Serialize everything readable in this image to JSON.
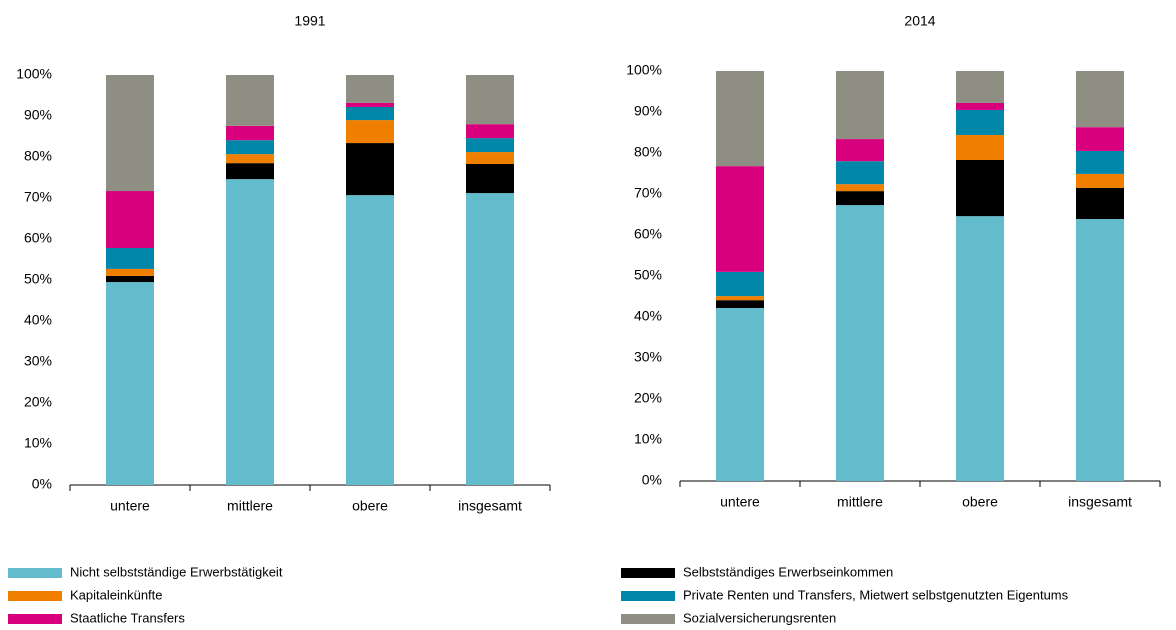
{
  "chart_data": [
    {
      "type": "stacked_bar",
      "title": "1991",
      "categories": [
        "untere",
        "mittlere",
        "obere",
        "insgesamt"
      ],
      "ylim": [
        0,
        100
      ],
      "yticks": [
        {
          "value": 0,
          "label": "0%"
        },
        {
          "value": 10,
          "label": "10%"
        },
        {
          "value": 20,
          "label": "20%"
        },
        {
          "value": 30,
          "label": "30%"
        },
        {
          "value": 40,
          "label": "40%"
        },
        {
          "value": 50,
          "label": "50%"
        },
        {
          "value": 60,
          "label": "60%"
        },
        {
          "value": 70,
          "label": "70%"
        },
        {
          "value": 80,
          "label": "80%"
        },
        {
          "value": 90,
          "label": "90%"
        },
        {
          "value": 100,
          "label": "100%"
        }
      ],
      "series": [
        {
          "name": "Nicht selbstständige Erwerbstätigkeit",
          "color": "#62bccc",
          "values": [
            49.5,
            74.6,
            70.7,
            71.2
          ]
        },
        {
          "name": "Selbstständiges Erwerbseinkommen",
          "color": "#000000",
          "values": [
            1.5,
            3.9,
            12.7,
            7.1
          ]
        },
        {
          "name": "Kapitaleinkünfte",
          "color": "#f07f00",
          "values": [
            1.7,
            2.2,
            5.6,
            2.9
          ]
        },
        {
          "name": "Private Renten und Transfers, Mietwert selbstgenutzten Eigentums",
          "color": "#0086a8",
          "values": [
            5.1,
            3.4,
            3.2,
            3.4
          ]
        },
        {
          "name": "Staatliche Transfers",
          "color": "#d9007e",
          "values": [
            13.9,
            3.5,
            1.0,
            3.4
          ]
        },
        {
          "name": "Sozialversicherungsrenten",
          "color": "#8f8e82",
          "values": [
            28.3,
            12.4,
            6.8,
            12.0
          ]
        }
      ]
    },
    {
      "type": "stacked_bar",
      "title": "2014",
      "categories": [
        "untere",
        "mittlere",
        "obere",
        "insgesamt"
      ],
      "ylim": [
        0,
        100
      ],
      "yticks": [
        {
          "value": 0,
          "label": "0%"
        },
        {
          "value": 10,
          "label": "10%"
        },
        {
          "value": 20,
          "label": "20%"
        },
        {
          "value": 30,
          "label": "30%"
        },
        {
          "value": 40,
          "label": "40%"
        },
        {
          "value": 50,
          "label": "50%"
        },
        {
          "value": 60,
          "label": "60%"
        },
        {
          "value": 70,
          "label": "70%"
        },
        {
          "value": 80,
          "label": "80%"
        },
        {
          "value": 90,
          "label": "90%"
        },
        {
          "value": 100,
          "label": "100%"
        }
      ],
      "series": [
        {
          "color": "#62bccc",
          "values": [
            42.2,
            67.3,
            64.6,
            63.9
          ]
        },
        {
          "color": "#000000",
          "values": [
            1.9,
            3.4,
            13.7,
            7.6
          ]
        },
        {
          "color": "#f07f00",
          "values": [
            1.0,
            1.7,
            6.1,
            3.4
          ]
        },
        {
          "color": "#0086a8",
          "values": [
            5.9,
            5.6,
            6.1,
            5.6
          ]
        },
        {
          "color": "#d9007e",
          "values": [
            25.8,
            5.4,
            1.7,
            5.8
          ]
        },
        {
          "color": "#8f8e82",
          "values": [
            23.2,
            16.6,
            7.8,
            13.7
          ]
        }
      ]
    }
  ]
}
